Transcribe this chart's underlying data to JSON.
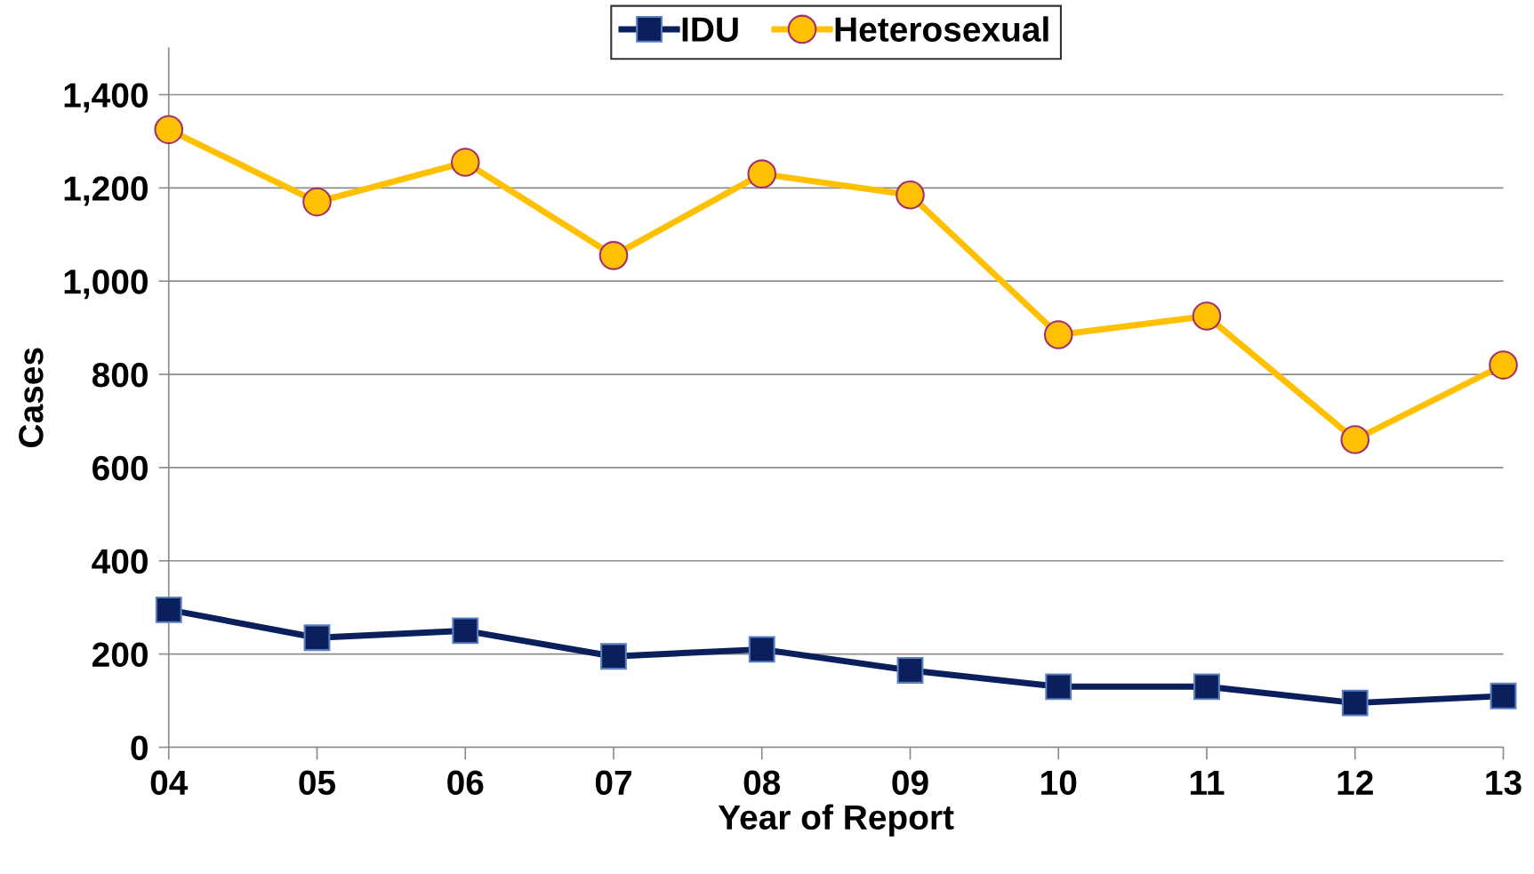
{
  "chart_data": {
    "type": "line",
    "xlabel": "Year of Report",
    "ylabel": "Cases",
    "categories": [
      "04",
      "05",
      "06",
      "07",
      "08",
      "09",
      "10",
      "11",
      "12",
      "13"
    ],
    "series": [
      {
        "name": "IDU",
        "color": "#0a1f5c",
        "marker": "square",
        "values": [
          295,
          235,
          250,
          195,
          210,
          165,
          130,
          130,
          95,
          110
        ]
      },
      {
        "name": "Heterosexual",
        "color": "#ffc000",
        "marker": "circle",
        "values": [
          1325,
          1170,
          1255,
          1055,
          1230,
          1185,
          885,
          925,
          660,
          820
        ]
      }
    ],
    "ylim": [
      0,
      1500
    ],
    "yticks": [
      0,
      200,
      400,
      600,
      800,
      {
        "value": 1000,
        "label": "1,000"
      },
      {
        "value": 1200,
        "label": "1,200"
      },
      {
        "value": 1400,
        "label": "1,400"
      }
    ],
    "grid": "y",
    "legend": "top",
    "line_style": "solid"
  }
}
